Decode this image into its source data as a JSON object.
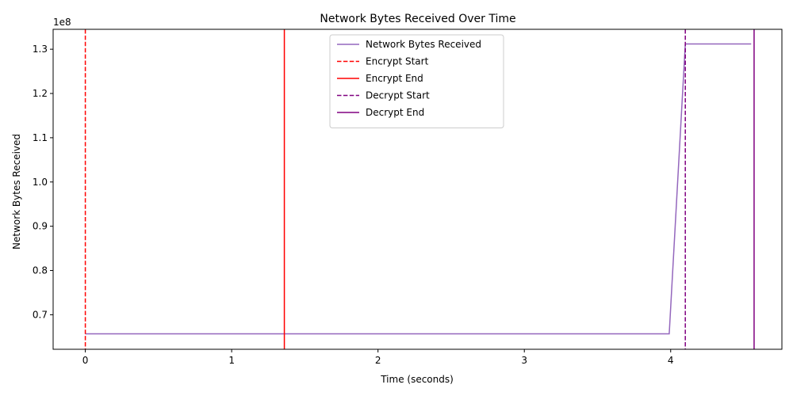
{
  "chart_data": {
    "type": "line",
    "title": "Network Bytes Received Over Time",
    "xlabel": "Time (seconds)",
    "ylabel": "Network Bytes Received",
    "y_offset_text": "1e8",
    "xlim": [
      -0.22,
      4.76
    ],
    "ylim": [
      0.622,
      1.345
    ],
    "x_ticks": [
      0,
      1,
      2,
      3,
      4
    ],
    "x_tick_labels": [
      "0",
      "1",
      "2",
      "3",
      "4"
    ],
    "y_ticks": [
      0.7,
      0.8,
      0.9,
      1.0,
      1.1,
      1.2,
      1.3
    ],
    "y_tick_labels": [
      "0.7",
      "0.8",
      "0.9",
      "1.0",
      "1.1",
      "1.2",
      "1.3"
    ],
    "grid": false,
    "legend_position": "top-center",
    "series": [
      {
        "name": "Network Bytes Received",
        "color": "#9467bd",
        "x": [
          0.0,
          3.99,
          4.1,
          4.55
        ],
        "y": [
          0.657,
          0.657,
          1.312,
          1.312
        ]
      }
    ],
    "vlines": [
      {
        "name": "Encrypt Start",
        "x": 0.0,
        "color": "#ff0000",
        "style": "dashed"
      },
      {
        "name": "Encrypt End",
        "x": 1.36,
        "color": "#ff0000",
        "style": "solid"
      },
      {
        "name": "Decrypt Start",
        "x": 4.1,
        "color": "#800080",
        "style": "dashed"
      },
      {
        "name": "Decrypt End",
        "x": 4.57,
        "color": "#800080",
        "style": "solid"
      }
    ]
  }
}
